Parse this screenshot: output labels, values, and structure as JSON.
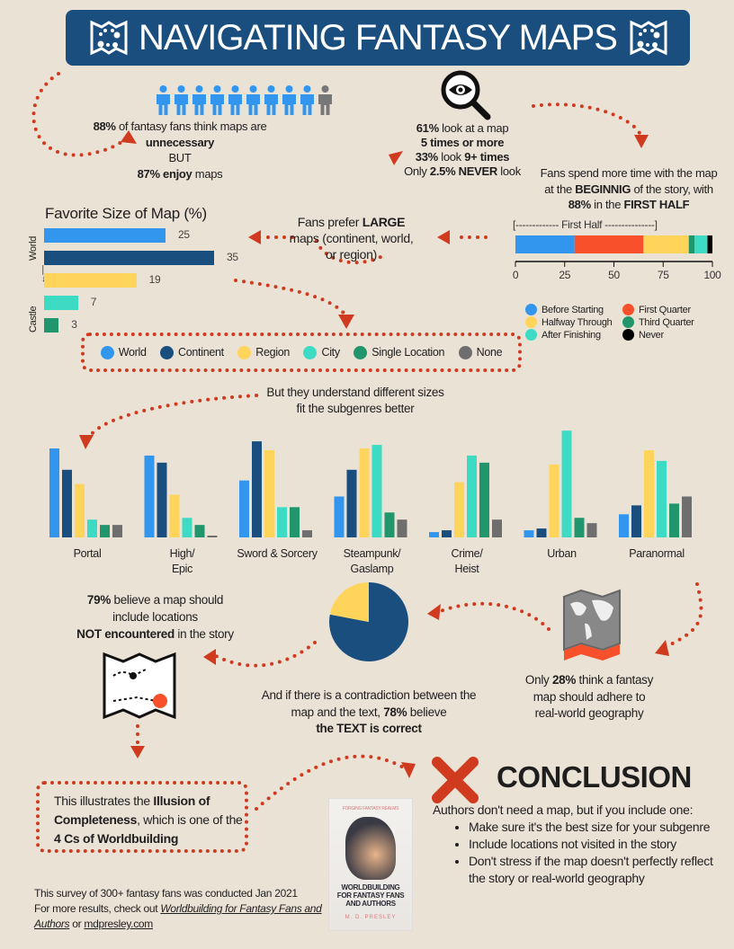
{
  "title": "NAVIGATING FANTASY MAPS",
  "stat_fans": {
    "pct": "88%",
    "l1": " of fantasy fans think maps are",
    "l2": "unnecessary",
    "l3": "BUT",
    "l4a": "87% enjoy",
    "l4b": " maps",
    "people_highlighted": 9,
    "people_total": 10
  },
  "stat_look": {
    "l1a": "61%",
    "l1b": " look at a map",
    "l2": "5 times or more",
    "l3a": "33%",
    "l3b": " look ",
    "l3c": "9+ times",
    "l4a": "Only ",
    "l4b": "2.5% NEVER",
    "l4c": " look"
  },
  "stat_time": {
    "l1": "Fans spend more time with the map",
    "l2a": "at the ",
    "l2b": "BEGINNIG",
    "l2c": " of the story, with",
    "l3a": "88%",
    "l3b": " in the ",
    "l3c": "FIRST HALF"
  },
  "prefer": {
    "a": "Fans prefer ",
    "b": "LARGE",
    "c": "maps (continent, world, or region)"
  },
  "understand": {
    "l1": "But they understand different sizes",
    "l2": "fit the subgenres better"
  },
  "believe": {
    "l1a": "79%",
    "l1b": " believe a map should",
    "l2": "include locations",
    "l3a": "NOT encountered",
    "l3b": " in the story"
  },
  "contradiction": {
    "l1": "And if there is a contradiction between the",
    "l2a": "map and the text, ",
    "l2b": "78%",
    "l2c": " believe",
    "l3": "the TEXT is correct"
  },
  "realworld": {
    "l1a": "Only ",
    "l1b": "28%",
    "l1c": " think a fantasy",
    "l2": "map should adhere to",
    "l3": "real-world geography"
  },
  "illusion": {
    "a": "This illustrates the ",
    "b": "Illusion of Completeness",
    "c": ", which is one of the ",
    "d": "4 Cs of Worldbuilding"
  },
  "conclusion": {
    "title": "CONCLUSION",
    "intro": "Authors don't need a map, but if you include one:",
    "bullets": [
      "Make sure it's the best size for your subgenre",
      "Include locations not visited in the story",
      "Don't stress if the map doesn't perfectly reflect the story or real-world geography"
    ]
  },
  "footer": {
    "l1": "This survey of 300+ fantasy fans was conducted Jan 2021",
    "l2": "For more results, check out ",
    "book_link": "Worldbuilding for Fantasy Fans and Authors",
    "or": " or ",
    "site_link": "mdpresley.com"
  },
  "book": {
    "series": "FORGING FANTASY REALMS",
    "title": "WORLDBUILDING FOR FANTASY FANS AND AUTHORS",
    "author": "M. D. PRESLEY"
  },
  "size_legend": [
    "World",
    "Continent",
    "Region",
    "City",
    "Single Location",
    "None"
  ],
  "colors": {
    "World": "#3296ee",
    "Continent": "#1a4e7e",
    "Region": "#ffd45a",
    "City": "#3ddbc4",
    "Single Location": "#21956c",
    "None": "#6e6e6e",
    "accent": "#d03a1f",
    "banner": "#1a4e7e"
  },
  "chart_data": [
    {
      "type": "bar",
      "orientation": "horizontal",
      "title": "Favorite Size of Map (%)",
      "categories": [
        "World",
        "Continent",
        "Region",
        "City",
        "Single Location"
      ],
      "values": [
        25,
        35,
        19,
        7,
        3
      ],
      "axis_labels": {
        "top": "World",
        "bottom": "Castle"
      }
    },
    {
      "type": "bar",
      "stacked": true,
      "orientation": "horizontal",
      "annotation": "First Half",
      "series": [
        {
          "name": "Before Starting",
          "value": 30,
          "color": "#3296ee"
        },
        {
          "name": "First Quarter",
          "value": 35,
          "color": "#f8502a"
        },
        {
          "name": "Halfway Through",
          "value": 23,
          "color": "#ffd45a"
        },
        {
          "name": "Third Quarter",
          "value": 3,
          "color": "#21956c"
        },
        {
          "name": "After Finishing",
          "value": 6.5,
          "color": "#3ddbc4"
        },
        {
          "name": "Never",
          "value": 2.5,
          "color": "#000000"
        }
      ],
      "xlim": [
        0,
        100
      ],
      "xticks": [
        0,
        25,
        50,
        75,
        100
      ],
      "legend": "bottom"
    },
    {
      "type": "bar",
      "grouped": true,
      "categories": [
        "Portal",
        "High/ Epic",
        "Sword & Sorcery",
        "Steampunk/ Gaslamp",
        "Crime/ Heist",
        "Urban",
        "Paranormal"
      ],
      "series": [
        {
          "name": "World",
          "values": [
            50,
            46,
            32,
            23,
            3,
            4,
            13
          ]
        },
        {
          "name": "Continent",
          "values": [
            38,
            42,
            54,
            38,
            4,
            5,
            18
          ]
        },
        {
          "name": "Region",
          "values": [
            30,
            24,
            49,
            50,
            31,
            41,
            49
          ]
        },
        {
          "name": "City",
          "values": [
            10,
            11,
            17,
            52,
            46,
            60,
            43
          ]
        },
        {
          "name": "Single Location",
          "values": [
            7,
            7,
            17,
            14,
            42,
            11,
            19
          ]
        },
        {
          "name": "None",
          "values": [
            7,
            1,
            4,
            10,
            10,
            8,
            23
          ]
        }
      ]
    },
    {
      "type": "pie",
      "values": [
        78,
        22
      ],
      "labels": [
        "TEXT is correct",
        "map is correct"
      ],
      "colors": [
        "#1a4e7e",
        "#ffd45a"
      ]
    }
  ]
}
